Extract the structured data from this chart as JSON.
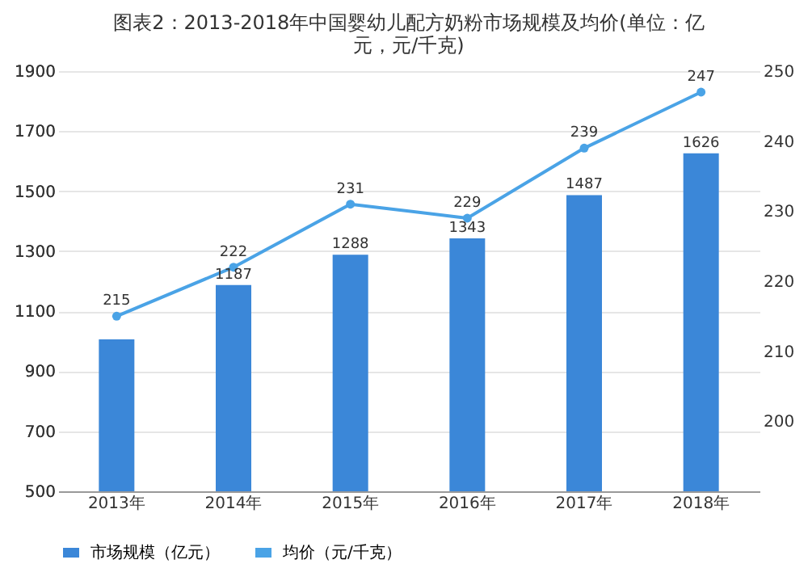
{
  "chart_data": {
    "type": "bar",
    "title": [
      "图表2：2013-2018年中国婴幼儿配方奶粉市场规模及均价(单位：亿",
      "元，元/千克)"
    ],
    "categories": [
      "2013年",
      "2014年",
      "2015年",
      "2016年",
      "2017年",
      "2018年"
    ],
    "series": [
      {
        "name": "市场规模（亿元）",
        "color": "#3b87d8",
        "values": [
          1006,
          1187,
          1288,
          1343,
          1487,
          1626
        ],
        "value_labels": [
          null,
          "1187",
          "1288",
          "1343",
          "1487",
          "1626"
        ]
      },
      {
        "name": "均价（元/千克）",
        "type": "line",
        "axis": "y2",
        "color": "#4aa3e6",
        "marker": "circle",
        "values": [
          215,
          222,
          231,
          229,
          239,
          247
        ],
        "value_labels": [
          "215",
          "222",
          "231",
          "229",
          "239",
          "247"
        ]
      }
    ],
    "ylim": [
      500,
      1900
    ],
    "yticks": [
      500,
      700,
      900,
      1100,
      1300,
      1500,
      1700,
      1900
    ],
    "y2lim": [
      190,
      250
    ],
    "y2ticks": [
      200,
      210,
      220,
      230,
      240,
      250
    ],
    "grid": "y",
    "legend": "bottom"
  }
}
